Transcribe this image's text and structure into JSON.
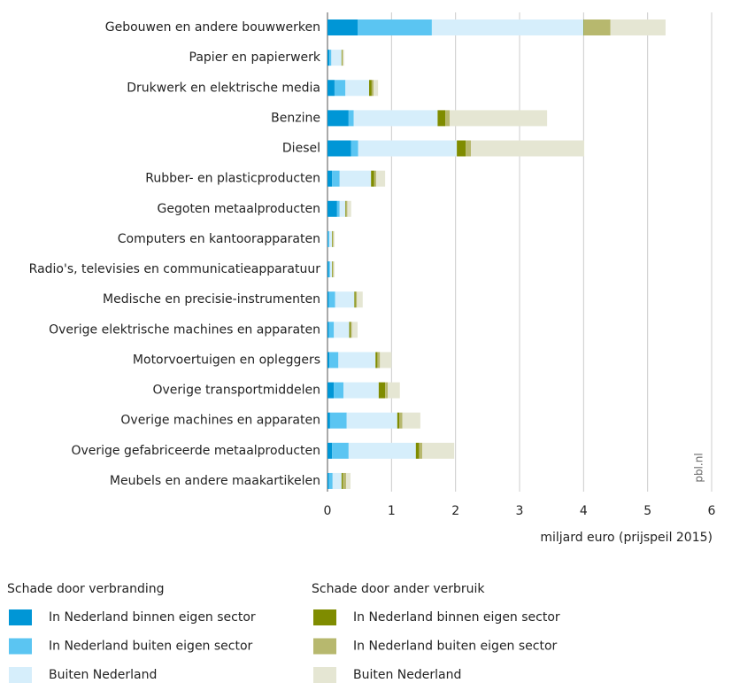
{
  "chart_data": {
    "type": "stacked-barh",
    "categories": [
      "Gebouwen en andere bouwwerken",
      "Papier en papierwerk",
      "Drukwerk en elektrische media",
      "Benzine",
      "Diesel",
      "Rubber- en plasticproducten",
      "Gegoten metaalproducten",
      "Computers en kantoorapparaten",
      "Radio's, televisies en communicatieapparatuur",
      "Medische en precisie-instrumenten",
      "Overige elektrische machines en apparaten",
      "Motorvoertuigen en opleggers",
      "Overige transportmiddelen",
      "Overige machines en apparaten",
      "Overige gefabriceerde metaalproducten",
      "Meubels en andere maakartikelen"
    ],
    "groups": [
      {
        "title": "Schade door verbranding",
        "series": [
          {
            "name": "In Nederland binnen eigen sector",
            "color": "#0096d6",
            "values": [
              0.47,
              0.03,
              0.11,
              0.33,
              0.37,
              0.07,
              0.15,
              0.01,
              0.02,
              0.02,
              0.02,
              0.03,
              0.1,
              0.04,
              0.07,
              0.02
            ]
          },
          {
            "name": "In Nederland buiten eigen sector",
            "color": "#5bc5f2",
            "values": [
              1.16,
              0.03,
              0.17,
              0.08,
              0.11,
              0.12,
              0.04,
              0.02,
              0.02,
              0.1,
              0.08,
              0.14,
              0.15,
              0.26,
              0.26,
              0.06
            ]
          },
          {
            "name": "Buiten Nederland",
            "color": "#d6eefb",
            "values": [
              2.37,
              0.16,
              0.37,
              1.31,
              1.54,
              0.49,
              0.09,
              0.04,
              0.03,
              0.3,
              0.24,
              0.58,
              0.55,
              0.79,
              1.05,
              0.14
            ]
          }
        ]
      },
      {
        "title": "Schade door ander verbruik",
        "series": [
          {
            "name": "In Nederland binnen eigen sector",
            "color": "#7f8c00",
            "values": [
              0.01,
              0.01,
              0.04,
              0.12,
              0.14,
              0.05,
              0.01,
              0.01,
              0.01,
              0.02,
              0.02,
              0.03,
              0.1,
              0.03,
              0.05,
              0.02
            ]
          },
          {
            "name": "In Nederland buiten eigen sector",
            "color": "#b7b86e",
            "values": [
              0.41,
              0.01,
              0.03,
              0.07,
              0.08,
              0.03,
              0.02,
              0.01,
              0.01,
              0.02,
              0.02,
              0.04,
              0.04,
              0.05,
              0.05,
              0.05
            ]
          },
          {
            "name": "Buiten Nederland",
            "color": "#e5e6d3",
            "values": [
              0.86,
              0.02,
              0.07,
              1.52,
              1.77,
              0.14,
              0.06,
              0.02,
              0.02,
              0.09,
              0.09,
              0.18,
              0.19,
              0.28,
              0.5,
              0.07
            ]
          }
        ]
      }
    ],
    "xlabel": "miljard euro (prijspeil 2015)",
    "source": "pbl.nl",
    "xlim": [
      0,
      6
    ],
    "xticks": [
      0,
      1,
      2,
      3,
      4,
      5,
      6
    ],
    "grid": true
  }
}
